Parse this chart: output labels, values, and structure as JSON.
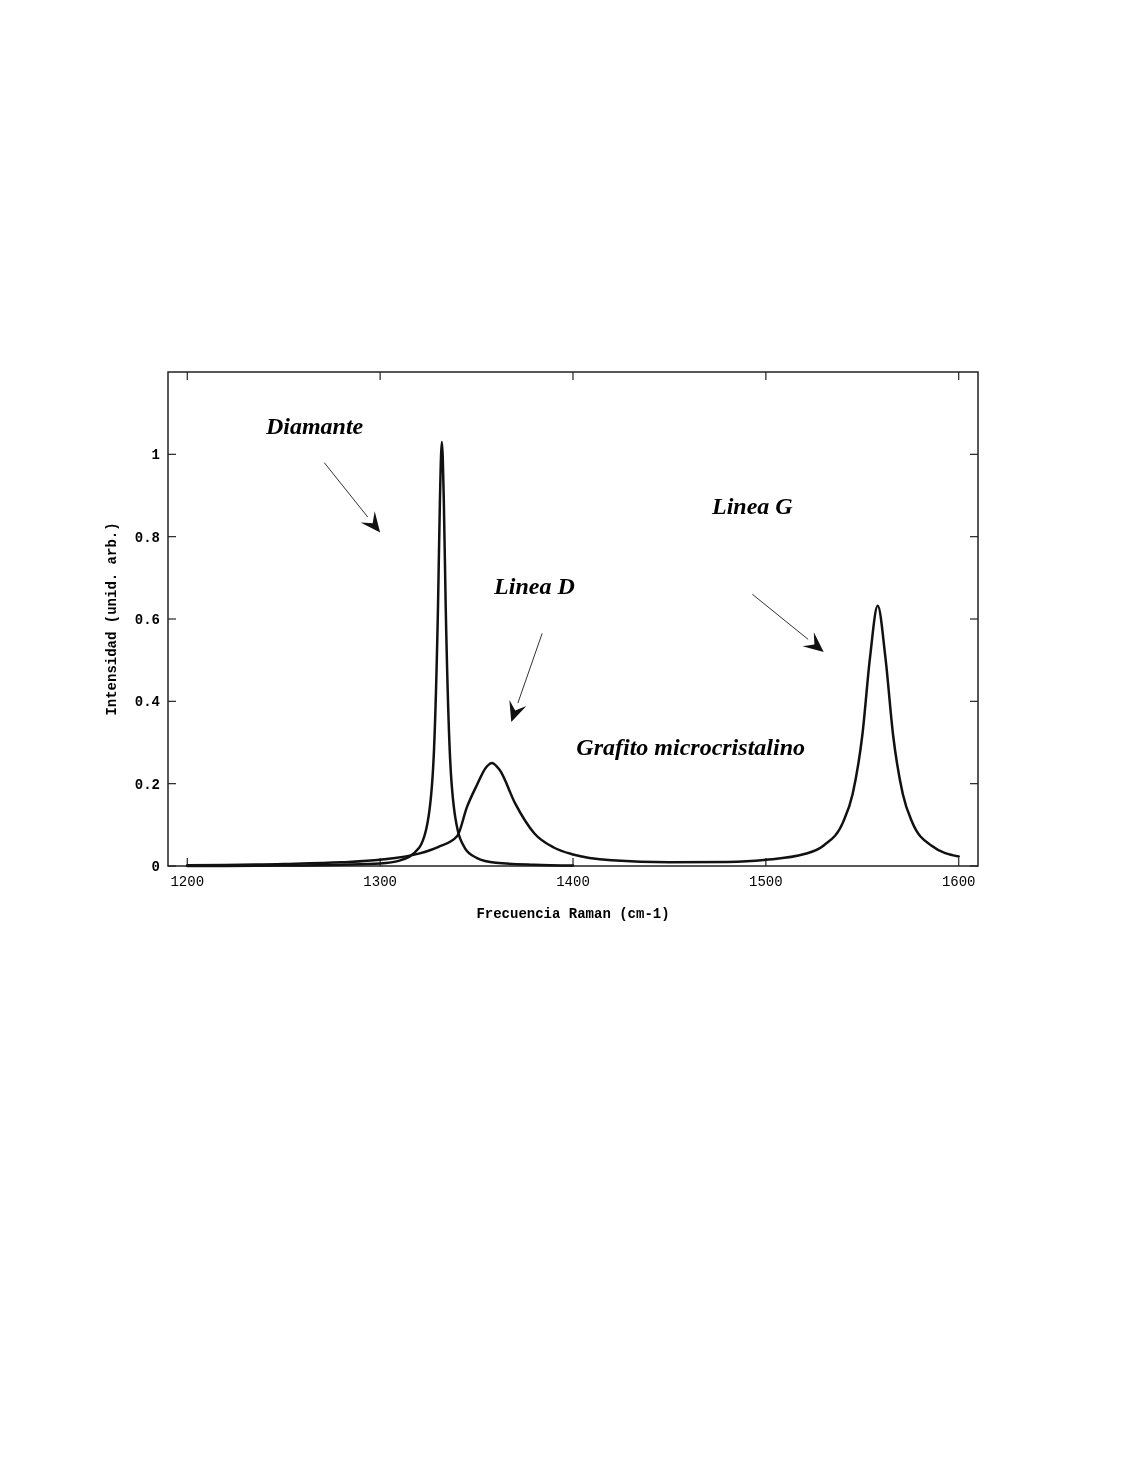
{
  "chart_data": {
    "type": "line",
    "xlabel": "Frecuencia Raman (cm-1)",
    "ylabel": "Intensidad (unid. arb.)",
    "xlim": [
      1190,
      1610
    ],
    "xticks": [
      1200,
      1300,
      1400,
      1500,
      1600
    ],
    "ylim": [
      0,
      1.2
    ],
    "yticks": [
      0,
      0.2,
      0.4,
      0.6,
      0.8,
      1
    ],
    "grid": false,
    "marker": "none",
    "line_style": "solid",
    "annotations": [
      "Diamante",
      "Linea D",
      "Linea G",
      "Grafito microcristalino"
    ],
    "series": [
      {
        "color": "#111111",
        "x": [
          1200,
          1250,
          1280,
          1300,
          1310,
          1320,
          1325,
          1328,
          1330,
          1331,
          1332,
          1333,
          1334,
          1336,
          1339,
          1344,
          1350,
          1360,
          1380,
          1400
        ],
        "values": [
          0,
          0.001,
          0.003,
          0.006,
          0.013,
          0.043,
          0.117,
          0.29,
          0.63,
          0.89,
          1.03,
          0.89,
          0.63,
          0.29,
          0.117,
          0.043,
          0.02,
          0.008,
          0.003,
          0.001
        ]
      },
      {
        "color": "#111111",
        "x": [
          1200,
          1250,
          1280,
          1300,
          1320,
          1330,
          1340,
          1345,
          1350,
          1355,
          1358,
          1362,
          1370,
          1380,
          1390,
          1400,
          1420,
          1450,
          1480,
          1500,
          1520,
          1530,
          1540,
          1545,
          1550,
          1554,
          1558,
          1562,
          1566,
          1571,
          1576,
          1586,
          1600
        ],
        "values": [
          0.002,
          0.005,
          0.009,
          0.015,
          0.03,
          0.046,
          0.073,
          0.143,
          0.195,
          0.24,
          0.25,
          0.233,
          0.152,
          0.079,
          0.045,
          0.028,
          0.014,
          0.009,
          0.01,
          0.015,
          0.029,
          0.05,
          0.106,
          0.175,
          0.317,
          0.506,
          0.632,
          0.506,
          0.317,
          0.175,
          0.105,
          0.049,
          0.023
        ]
      }
    ]
  }
}
